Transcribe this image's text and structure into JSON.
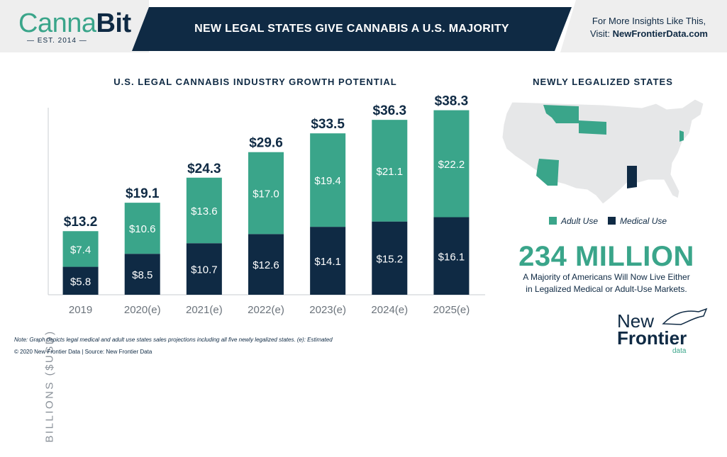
{
  "header": {
    "logo_part1": "Canna",
    "logo_part2": "Bit",
    "logo_est": "— EST. 2014 —",
    "title": "NEW LEGAL STATES GIVE CANNABIS A U.S. MAJORITY",
    "right_line1": "For More Insights Like This,",
    "right_line2_prefix": "Visit: ",
    "right_line2_link": "NewFrontierData.com"
  },
  "colors": {
    "navy": "#0f2a44",
    "green": "#3aa58a",
    "gray": "#eeeeee"
  },
  "chart_data": {
    "type": "bar",
    "stacked": true,
    "title": "U.S. LEGAL CANNABIS INDUSTRY GROWTH POTENTIAL",
    "ylabel": "BILLIONS ($USD)",
    "categories": [
      "2019",
      "2020(e)",
      "2021(e)",
      "2022(e)",
      "2023(e)",
      "2024(e)",
      "2025(e)"
    ],
    "totals": [
      "$13.2",
      "$19.1",
      "$24.3",
      "$29.6",
      "$33.5",
      "$36.3",
      "$38.3"
    ],
    "total_values": [
      13.2,
      19.1,
      24.3,
      29.6,
      33.5,
      36.3,
      38.3
    ],
    "series": [
      {
        "name": "Medical Use",
        "color": "#0f2a44",
        "values": [
          5.8,
          8.5,
          10.7,
          12.6,
          14.1,
          15.2,
          16.1
        ],
        "labels": [
          "$5.8",
          "$8.5",
          "$10.7",
          "$12.6",
          "$14.1",
          "$15.2",
          "$16.1"
        ]
      },
      {
        "name": "Adult Use",
        "color": "#3aa58a",
        "values": [
          7.4,
          10.6,
          13.6,
          17.0,
          19.4,
          21.1,
          22.2
        ],
        "labels": [
          "$7.4",
          "$10.6",
          "$13.6",
          "$17.0",
          "$19.4",
          "$21.1",
          "$22.2"
        ]
      }
    ],
    "ylim": [
      0,
      40
    ],
    "grid": false
  },
  "map": {
    "title": "NEWLY LEGALIZED STATES",
    "legend": [
      {
        "label": "Adult Use",
        "color": "#3aa58a"
      },
      {
        "label": "Medical Use",
        "color": "#0f2a44"
      }
    ]
  },
  "stat": {
    "big": "234 MILLION",
    "line1": "A Majority of Americans Will Now Live Either",
    "line2": "in Legalized Medical or Adult-Use Markets."
  },
  "footer": {
    "note": "Note: Graph depicts legal medical and adult use states sales projections including all five newly legalized states.   (e): Estimated",
    "copyright": "© 2020  New Frontier Data | Source: New Frontier Data"
  },
  "brand": {
    "line1": "New",
    "line2": "Frontier",
    "line3": "data"
  }
}
